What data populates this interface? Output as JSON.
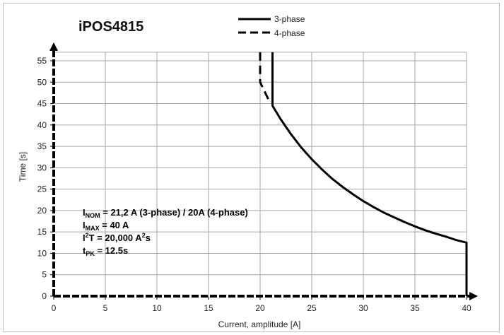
{
  "chart_data": {
    "type": "line",
    "title": "iPOS4815",
    "xlabel": "Current, amplitude [A]",
    "ylabel": "Time [s]",
    "xlim": [
      0,
      40
    ],
    "ylim": [
      0,
      57
    ],
    "xticks": [
      0,
      5,
      10,
      15,
      20,
      25,
      30,
      35,
      40
    ],
    "yticks": [
      0,
      5,
      10,
      15,
      20,
      25,
      30,
      35,
      40,
      45,
      50,
      55
    ],
    "grid": true,
    "legend_position": "top-center",
    "series": [
      {
        "name": "3-phase",
        "style": "solid",
        "color": "#000000",
        "points": [
          [
            21.2,
            57
          ],
          [
            21.2,
            44.5
          ],
          [
            22,
            41.3
          ],
          [
            23,
            37.8
          ],
          [
            24,
            34.7
          ],
          [
            25,
            32
          ],
          [
            26,
            29.6
          ],
          [
            27,
            27.4
          ],
          [
            28,
            25.5
          ],
          [
            29,
            23.8
          ],
          [
            30,
            22.2
          ],
          [
            31,
            20.8
          ],
          [
            32,
            19.5
          ],
          [
            33,
            18.4
          ],
          [
            34,
            17.3
          ],
          [
            35,
            16.3
          ],
          [
            36,
            15.4
          ],
          [
            37,
            14.6
          ],
          [
            38,
            13.9
          ],
          [
            39,
            13.1
          ],
          [
            40,
            12.5
          ],
          [
            40,
            0
          ]
        ]
      },
      {
        "name": "4-phase",
        "style": "dashed",
        "color": "#000000",
        "points": [
          [
            20,
            57
          ],
          [
            20,
            50
          ],
          [
            20.9,
            45.5
          ]
        ]
      }
    ],
    "annotations": [
      {
        "main": "I",
        "sub": "NOM",
        "rest": " = 21,2 A (3-phase) / 20A (4-phase)"
      },
      {
        "main": "I",
        "sub": "MAX",
        "rest": " = 40 A"
      },
      {
        "main": "I",
        "sup": "2",
        "main2": "T = 20,000 A",
        "sup2": "2",
        "rest": "s"
      },
      {
        "main": "t",
        "sub": "PK",
        "rest": " = 12.5s"
      }
    ]
  }
}
